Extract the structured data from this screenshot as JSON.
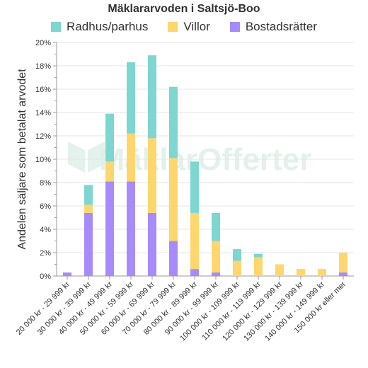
{
  "chart_data": {
    "type": "bar",
    "stacked": true,
    "title": "Mäklararvoden i Saltsjö-Boo",
    "ylabel": "Andelen säljare som betalat arvodet",
    "xlabel": "",
    "ylim": [
      0,
      20
    ],
    "yticks": [
      "0%",
      "2%",
      "4%",
      "6%",
      "8%",
      "10%",
      "12%",
      "14%",
      "16%",
      "18%",
      "20%"
    ],
    "grid": true,
    "legend_position": "top",
    "categories": [
      "20 000 kr - 29 999 kr",
      "30 000 kr - 39 999 kr",
      "40 000 kr - 49 999 kr",
      "50 000 kr - 59 999 kr",
      "60 000 kr - 69 999 kr",
      "70 000 kr - 79 999 kr",
      "80 000 kr - 89 999 kr",
      "90 000 kr - 99 999 kr",
      "100 000 kr - 109 999 kr",
      "110 000 kr - 119 999 kr",
      "120 000 kr - 129 999 kr",
      "130 000 kr - 139 999 kr",
      "140 000 kr - 149 999 kr",
      "150 000 kr eller mer"
    ],
    "series": [
      {
        "name": "Bostadsrätter",
        "color": "#a78bfa",
        "values": [
          0.3,
          5.4,
          8.1,
          8.1,
          5.4,
          3.0,
          0.6,
          0.3,
          0,
          0,
          0,
          0,
          0,
          0.3
        ]
      },
      {
        "name": "Villor",
        "color": "#fdd66e",
        "values": [
          0,
          0.7,
          1.7,
          4.1,
          6.4,
          7.1,
          4.8,
          2.7,
          1.3,
          1.6,
          1.0,
          0.6,
          0.6,
          1.7
        ]
      },
      {
        "name": "Radhus/parhus",
        "color": "#7dd6cf",
        "values": [
          0,
          1.7,
          4.1,
          6.1,
          7.1,
          6.1,
          4.4,
          2.4,
          1.0,
          0.3,
          0,
          0,
          0,
          0
        ]
      }
    ],
    "legend_order": [
      "Radhus/parhus",
      "Villor",
      "Bostadsrätter"
    ]
  },
  "watermark": "MäklarOfferter",
  "colors": {
    "axis": "#999999",
    "grid": "#e6e6e6",
    "text": "#333333"
  }
}
